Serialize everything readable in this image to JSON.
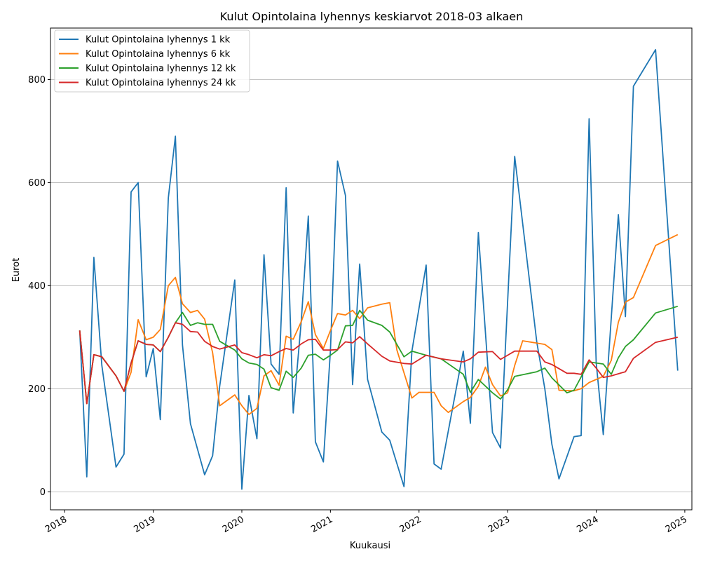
{
  "chart_data": {
    "type": "line",
    "title": "Kulut Opintolaina lyhennys keskiarvot 2018-03 alkaen",
    "xlabel": "Kuukausi",
    "ylabel": "Eurot",
    "xlim": [
      2017.84,
      2025.08
    ],
    "ylim": [
      -35,
      900
    ],
    "x_ticks": [
      2018,
      2019,
      2020,
      2021,
      2022,
      2023,
      2024,
      2025
    ],
    "x_tick_labels": [
      "2018",
      "2019",
      "2020",
      "2021",
      "2022",
      "2023",
      "2024",
      "2025"
    ],
    "y_ticks": [
      0,
      200,
      400,
      600,
      800
    ],
    "y_tick_labels": [
      "0",
      "200",
      "400",
      "600",
      "800"
    ],
    "grid": "horizontal",
    "legend_position": "top-left",
    "series": [
      {
        "name": "Kulut Opintolaina lyhennys 1 kk",
        "color": "#1f77b4",
        "points": [
          [
            2018.17,
            313
          ],
          [
            2018.25,
            29
          ],
          [
            2018.33,
            455
          ],
          [
            2018.42,
            245
          ],
          [
            2018.58,
            48
          ],
          [
            2018.67,
            73
          ],
          [
            2018.75,
            582
          ],
          [
            2018.83,
            600
          ],
          [
            2018.92,
            223
          ],
          [
            2019.0,
            278
          ],
          [
            2019.08,
            140
          ],
          [
            2019.17,
            570
          ],
          [
            2019.25,
            690
          ],
          [
            2019.33,
            285
          ],
          [
            2019.42,
            132
          ],
          [
            2019.58,
            33
          ],
          [
            2019.67,
            70
          ],
          [
            2019.75,
            205
          ],
          [
            2019.92,
            411
          ],
          [
            2020.0,
            5
          ],
          [
            2020.08,
            187
          ],
          [
            2020.17,
            103
          ],
          [
            2020.25,
            460
          ],
          [
            2020.33,
            248
          ],
          [
            2020.42,
            228
          ],
          [
            2020.5,
            590
          ],
          [
            2020.58,
            153
          ],
          [
            2020.67,
            330
          ],
          [
            2020.75,
            535
          ],
          [
            2020.83,
            97
          ],
          [
            2020.92,
            58
          ],
          [
            2021.0,
            275
          ],
          [
            2021.08,
            642
          ],
          [
            2021.17,
            575
          ],
          [
            2021.25,
            208
          ],
          [
            2021.33,
            442
          ],
          [
            2021.42,
            218
          ],
          [
            2021.58,
            116
          ],
          [
            2021.67,
            100
          ],
          [
            2021.83,
            10
          ],
          [
            2021.92,
            273
          ],
          [
            2022.08,
            440
          ],
          [
            2022.17,
            54
          ],
          [
            2022.25,
            44
          ],
          [
            2022.5,
            273
          ],
          [
            2022.58,
            133
          ],
          [
            2022.67,
            503
          ],
          [
            2022.83,
            115
          ],
          [
            2022.92,
            85
          ],
          [
            2023.08,
            651
          ],
          [
            2023.33,
            290
          ],
          [
            2023.42,
            200
          ],
          [
            2023.5,
            92
          ],
          [
            2023.58,
            25
          ],
          [
            2023.75,
            107
          ],
          [
            2023.83,
            109
          ],
          [
            2023.92,
            724
          ],
          [
            2024.0,
            250
          ],
          [
            2024.08,
            111
          ],
          [
            2024.25,
            538
          ],
          [
            2024.33,
            340
          ],
          [
            2024.42,
            787
          ],
          [
            2024.67,
            858
          ],
          [
            2024.92,
            235
          ]
        ]
      },
      {
        "name": "Kulut Opintolaina lyhennys 6 kk",
        "color": "#ff7f0e",
        "points": [
          [
            2018.17,
            313
          ],
          [
            2018.25,
            171
          ],
          [
            2018.33,
            266
          ],
          [
            2018.42,
            262
          ],
          [
            2018.58,
            225
          ],
          [
            2018.67,
            195
          ],
          [
            2018.75,
            232
          ],
          [
            2018.83,
            334
          ],
          [
            2018.92,
            295
          ],
          [
            2019.0,
            300
          ],
          [
            2019.08,
            315
          ],
          [
            2019.17,
            400
          ],
          [
            2019.25,
            416
          ],
          [
            2019.33,
            365
          ],
          [
            2019.42,
            348
          ],
          [
            2019.5,
            352
          ],
          [
            2019.58,
            335
          ],
          [
            2019.67,
            270
          ],
          [
            2019.75,
            167
          ],
          [
            2019.92,
            188
          ],
          [
            2020.0,
            167
          ],
          [
            2020.08,
            150
          ],
          [
            2020.17,
            162
          ],
          [
            2020.25,
            225
          ],
          [
            2020.33,
            235
          ],
          [
            2020.42,
            207
          ],
          [
            2020.5,
            302
          ],
          [
            2020.58,
            296
          ],
          [
            2020.67,
            330
          ],
          [
            2020.75,
            369
          ],
          [
            2020.83,
            305
          ],
          [
            2020.92,
            278
          ],
          [
            2021.0,
            313
          ],
          [
            2021.08,
            346
          ],
          [
            2021.17,
            343
          ],
          [
            2021.25,
            352
          ],
          [
            2021.33,
            336
          ],
          [
            2021.42,
            357
          ],
          [
            2021.58,
            364
          ],
          [
            2021.67,
            367
          ],
          [
            2021.75,
            275
          ],
          [
            2021.92,
            182
          ],
          [
            2022.0,
            193
          ],
          [
            2022.08,
            193
          ],
          [
            2022.17,
            193
          ],
          [
            2022.25,
            167
          ],
          [
            2022.33,
            154
          ],
          [
            2022.5,
            175
          ],
          [
            2022.58,
            183
          ],
          [
            2022.67,
            205
          ],
          [
            2022.75,
            242
          ],
          [
            2022.83,
            208
          ],
          [
            2022.92,
            186
          ],
          [
            2023.0,
            192
          ],
          [
            2023.08,
            245
          ],
          [
            2023.17,
            293
          ],
          [
            2023.42,
            286
          ],
          [
            2023.5,
            276
          ],
          [
            2023.58,
            197
          ],
          [
            2023.75,
            196
          ],
          [
            2023.83,
            200
          ],
          [
            2023.92,
            212
          ],
          [
            2024.08,
            224
          ],
          [
            2024.17,
            255
          ],
          [
            2024.25,
            329
          ],
          [
            2024.33,
            368
          ],
          [
            2024.42,
            377
          ],
          [
            2024.67,
            478
          ],
          [
            2024.92,
            499
          ]
        ]
      },
      {
        "name": "Kulut Opintolaina lyhennys 12 kk",
        "color": "#2ca02c",
        "points": [
          [
            2018.17,
            313
          ],
          [
            2018.25,
            171
          ],
          [
            2018.33,
            266
          ],
          [
            2018.42,
            262
          ],
          [
            2018.58,
            225
          ],
          [
            2018.67,
            195
          ],
          [
            2018.75,
            250
          ],
          [
            2018.83,
            293
          ],
          [
            2018.92,
            286
          ],
          [
            2019.0,
            285
          ],
          [
            2019.08,
            272
          ],
          [
            2019.17,
            300
          ],
          [
            2019.25,
            328
          ],
          [
            2019.33,
            348
          ],
          [
            2019.42,
            323
          ],
          [
            2019.5,
            328
          ],
          [
            2019.58,
            325
          ],
          [
            2019.67,
            325
          ],
          [
            2019.75,
            292
          ],
          [
            2019.92,
            275
          ],
          [
            2020.0,
            258
          ],
          [
            2020.08,
            250
          ],
          [
            2020.17,
            247
          ],
          [
            2020.25,
            238
          ],
          [
            2020.33,
            202
          ],
          [
            2020.42,
            197
          ],
          [
            2020.5,
            234
          ],
          [
            2020.58,
            222
          ],
          [
            2020.67,
            240
          ],
          [
            2020.75,
            265
          ],
          [
            2020.83,
            267
          ],
          [
            2020.92,
            256
          ],
          [
            2021.0,
            265
          ],
          [
            2021.08,
            275
          ],
          [
            2021.17,
            322
          ],
          [
            2021.25,
            323
          ],
          [
            2021.33,
            352
          ],
          [
            2021.42,
            333
          ],
          [
            2021.58,
            323
          ],
          [
            2021.67,
            310
          ],
          [
            2021.83,
            262
          ],
          [
            2021.92,
            273
          ],
          [
            2022.08,
            265
          ],
          [
            2022.25,
            258
          ],
          [
            2022.5,
            228
          ],
          [
            2022.58,
            193
          ],
          [
            2022.67,
            218
          ],
          [
            2022.83,
            192
          ],
          [
            2022.92,
            180
          ],
          [
            2023.0,
            198
          ],
          [
            2023.08,
            224
          ],
          [
            2023.33,
            233
          ],
          [
            2023.42,
            240
          ],
          [
            2023.5,
            221
          ],
          [
            2023.67,
            192
          ],
          [
            2023.75,
            197
          ],
          [
            2023.92,
            252
          ],
          [
            2024.0,
            250
          ],
          [
            2024.08,
            248
          ],
          [
            2024.17,
            228
          ],
          [
            2024.25,
            260
          ],
          [
            2024.33,
            282
          ],
          [
            2024.42,
            295
          ],
          [
            2024.67,
            347
          ],
          [
            2024.92,
            360
          ]
        ]
      },
      {
        "name": "Kulut Opintolaina lyhennys 24 kk",
        "color": "#d62728",
        "points": [
          [
            2018.17,
            313
          ],
          [
            2018.25,
            171
          ],
          [
            2018.33,
            266
          ],
          [
            2018.42,
            262
          ],
          [
            2018.58,
            225
          ],
          [
            2018.67,
            195
          ],
          [
            2018.75,
            250
          ],
          [
            2018.83,
            293
          ],
          [
            2018.92,
            286
          ],
          [
            2019.0,
            285
          ],
          [
            2019.08,
            272
          ],
          [
            2019.17,
            300
          ],
          [
            2019.25,
            328
          ],
          [
            2019.33,
            325
          ],
          [
            2019.42,
            311
          ],
          [
            2019.5,
            310
          ],
          [
            2019.58,
            292
          ],
          [
            2019.67,
            282
          ],
          [
            2019.75,
            277
          ],
          [
            2019.92,
            285
          ],
          [
            2020.0,
            270
          ],
          [
            2020.08,
            266
          ],
          [
            2020.17,
            260
          ],
          [
            2020.25,
            266
          ],
          [
            2020.33,
            264
          ],
          [
            2020.42,
            272
          ],
          [
            2020.5,
            278
          ],
          [
            2020.58,
            275
          ],
          [
            2020.67,
            287
          ],
          [
            2020.75,
            295
          ],
          [
            2020.83,
            296
          ],
          [
            2020.92,
            275
          ],
          [
            2021.0,
            275
          ],
          [
            2021.08,
            276
          ],
          [
            2021.17,
            291
          ],
          [
            2021.25,
            289
          ],
          [
            2021.33,
            301
          ],
          [
            2021.42,
            287
          ],
          [
            2021.58,
            263
          ],
          [
            2021.67,
            254
          ],
          [
            2021.83,
            249
          ],
          [
            2021.92,
            248
          ],
          [
            2022.08,
            265
          ],
          [
            2022.25,
            258
          ],
          [
            2022.5,
            252
          ],
          [
            2022.58,
            258
          ],
          [
            2022.67,
            271
          ],
          [
            2022.83,
            272
          ],
          [
            2022.92,
            257
          ],
          [
            2023.0,
            265
          ],
          [
            2023.08,
            273
          ],
          [
            2023.33,
            273
          ],
          [
            2023.42,
            252
          ],
          [
            2023.5,
            247
          ],
          [
            2023.67,
            230
          ],
          [
            2023.75,
            230
          ],
          [
            2023.83,
            228
          ],
          [
            2023.92,
            256
          ],
          [
            2024.0,
            240
          ],
          [
            2024.08,
            222
          ],
          [
            2024.17,
            225
          ],
          [
            2024.33,
            233
          ],
          [
            2024.42,
            259
          ],
          [
            2024.67,
            290
          ],
          [
            2024.92,
            300
          ]
        ]
      }
    ]
  }
}
